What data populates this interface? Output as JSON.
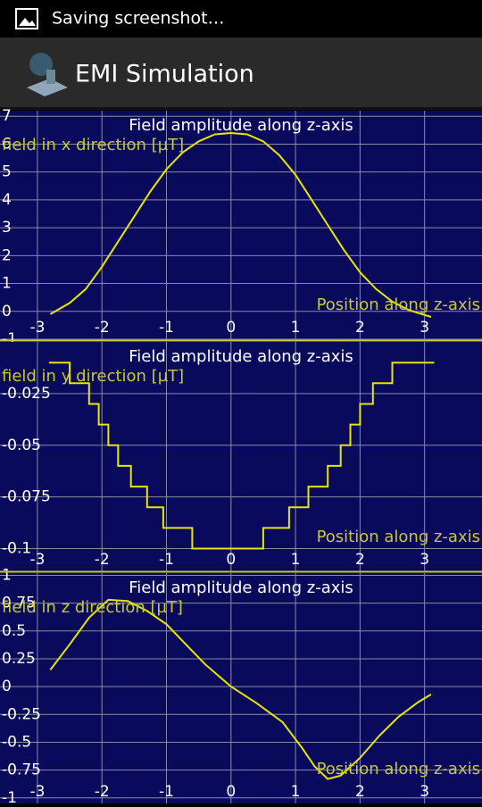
{
  "status_bar": {
    "text": "Saving screenshot…"
  },
  "action_bar": {
    "title": "EMI Simulation"
  },
  "chart_data": [
    {
      "type": "line",
      "title": "Field amplitude along z-axis",
      "x_label": "Position along z-axis",
      "y_label": "field in x direction [µT]",
      "x": [
        -2.8,
        -2.5,
        -2.25,
        -2.0,
        -1.75,
        -1.5,
        -1.25,
        -1.0,
        -0.75,
        -0.5,
        -0.25,
        0,
        0.25,
        0.5,
        0.75,
        1.0,
        1.25,
        1.5,
        1.75,
        2.0,
        2.25,
        2.5,
        2.75,
        3.1
      ],
      "values": [
        -0.1,
        0.3,
        0.8,
        1.6,
        2.5,
        3.4,
        4.3,
        5.1,
        5.7,
        6.1,
        6.35,
        6.4,
        6.35,
        6.1,
        5.6,
        4.9,
        4.0,
        3.1,
        2.2,
        1.4,
        0.8,
        0.35,
        0.05,
        -0.2
      ],
      "color": "#e6e600",
      "xlim": [
        -3.58,
        3.89
      ],
      "xticks": [
        -3,
        -2,
        -1,
        0,
        1,
        2,
        3
      ],
      "ylim": [
        -1,
        7.2
      ],
      "yticks": [
        -1,
        0,
        1,
        2,
        3,
        4,
        5,
        6,
        7
      ],
      "grid": true
    },
    {
      "type": "line",
      "title": "Field amplitude along z-axis",
      "x_label": "Position along z-axis",
      "y_label": "field in y direction [µT]",
      "x": [
        -2.82,
        -2.5,
        -2.5,
        -2.2,
        -2.2,
        -2.05,
        -2.05,
        -1.9,
        -1.9,
        -1.75,
        -1.75,
        -1.55,
        -1.55,
        -1.3,
        -1.3,
        -1.05,
        -1.05,
        -0.6,
        -0.6,
        0.5,
        0.5,
        0.9,
        0.9,
        1.2,
        1.2,
        1.5,
        1.5,
        1.7,
        1.7,
        1.85,
        1.85,
        2.0,
        2.0,
        2.2,
        2.2,
        2.5,
        2.5,
        3.15
      ],
      "values": [
        -0.01,
        -0.01,
        -0.02,
        -0.02,
        -0.03,
        -0.03,
        -0.04,
        -0.04,
        -0.05,
        -0.05,
        -0.06,
        -0.06,
        -0.07,
        -0.07,
        -0.08,
        -0.08,
        -0.09,
        -0.09,
        -0.1,
        -0.1,
        -0.09,
        -0.09,
        -0.08,
        -0.08,
        -0.07,
        -0.07,
        -0.06,
        -0.06,
        -0.05,
        -0.05,
        -0.04,
        -0.04,
        -0.03,
        -0.03,
        -0.02,
        -0.02,
        -0.01,
        -0.01
      ],
      "color": "#e6e600",
      "xlim": [
        -3.58,
        3.89
      ],
      "xticks": [
        -3,
        -2,
        -1,
        0,
        1,
        2,
        3
      ],
      "ylim": [
        -0.111,
        0
      ],
      "yticks": [
        -0.1,
        -0.075,
        -0.05,
        -0.025
      ],
      "grid": true
    },
    {
      "type": "line",
      "title": "Field amplitude along z-axis",
      "x_label": "Position along z-axis",
      "y_label": "field in z direction [µT]",
      "x": [
        -2.8,
        -2.5,
        -2.2,
        -1.9,
        -1.6,
        -1.3,
        -1.0,
        -0.7,
        -0.4,
        0,
        0.4,
        0.8,
        1.1,
        1.3,
        1.5,
        1.7,
        2.0,
        2.3,
        2.6,
        2.9,
        3.1
      ],
      "values": [
        0.15,
        0.38,
        0.62,
        0.78,
        0.77,
        0.68,
        0.56,
        0.38,
        0.2,
        0.0,
        -0.15,
        -0.32,
        -0.55,
        -0.72,
        -0.83,
        -0.8,
        -0.64,
        -0.44,
        -0.27,
        -0.14,
        -0.07
      ],
      "color": "#e6e600",
      "xlim": [
        -3.58,
        3.89
      ],
      "xticks": [
        -3,
        -2,
        -1,
        0,
        1,
        2,
        3
      ],
      "ylim": [
        -1.05,
        1.02
      ],
      "yticks": [
        -1,
        -0.75,
        -0.5,
        -0.25,
        0,
        0.25,
        0.5,
        0.75,
        1
      ],
      "grid": true
    }
  ]
}
